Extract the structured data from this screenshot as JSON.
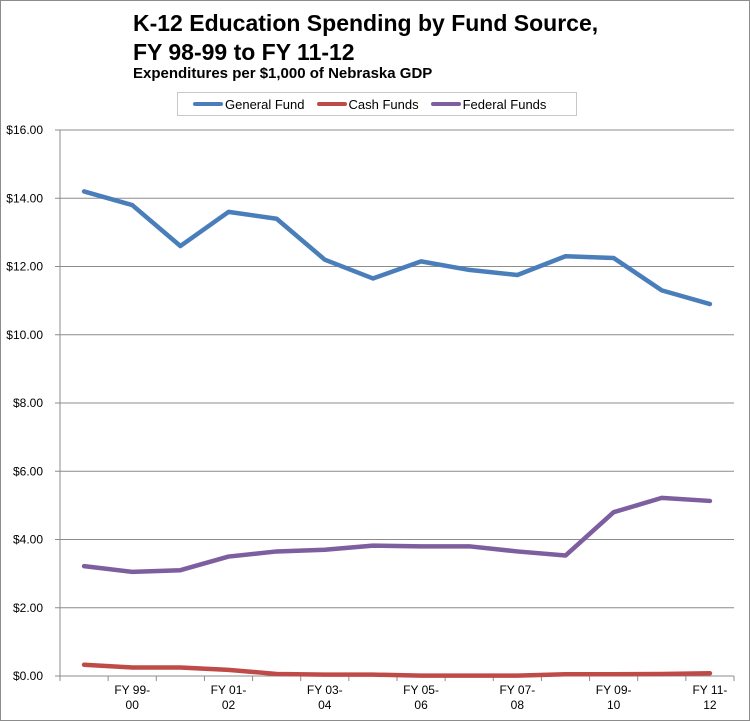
{
  "chart_data": {
    "type": "line",
    "title": "K-12 Education Spending by Fund Source,\nFY 98-99 to FY 11-12",
    "subtitle": "Expenditures per $1,000 of Nebraska GDP",
    "xlabel": "",
    "ylabel": "",
    "ylim": [
      0,
      16
    ],
    "yticks": [
      "$0.00",
      "$2.00",
      "$4.00",
      "$6.00",
      "$8.00",
      "$10.00",
      "$12.00",
      "$14.00",
      "$16.00"
    ],
    "grid": true,
    "legend_position": "top",
    "categories": [
      "",
      "FY 99-00",
      "",
      "FY 01-02",
      "",
      "FY 03-04",
      "",
      "FY 05-06",
      "",
      "FY 07-08",
      "",
      "FY 09-10",
      "",
      "FY 11-12"
    ],
    "x_tick_labels": [
      {
        "line1": "FY 99-",
        "line2": "00"
      },
      {
        "line1": "FY 01-",
        "line2": "02"
      },
      {
        "line1": "FY 03-",
        "line2": "04"
      },
      {
        "line1": "FY 05-",
        "line2": "06"
      },
      {
        "line1": "FY 07-",
        "line2": "08"
      },
      {
        "line1": "FY 09-",
        "line2": "10"
      },
      {
        "line1": "FY 11-",
        "line2": "12"
      }
    ],
    "series": [
      {
        "name": "General Fund",
        "color": "#4a7ebb",
        "values": [
          14.2,
          13.8,
          12.6,
          13.6,
          13.4,
          12.2,
          11.65,
          12.15,
          11.9,
          11.75,
          12.3,
          12.25,
          11.3,
          10.9
        ]
      },
      {
        "name": "Cash Funds",
        "color": "#be4b48",
        "values": [
          0.33,
          0.25,
          0.25,
          0.18,
          0.06,
          0.04,
          0.04,
          0.01,
          0.01,
          0.01,
          0.05,
          0.05,
          0.06,
          0.08
        ]
      },
      {
        "name": "Federal Funds",
        "color": "#7d5fa0",
        "values": [
          3.22,
          3.05,
          3.1,
          3.5,
          3.65,
          3.7,
          3.82,
          3.8,
          3.8,
          3.65,
          3.53,
          4.8,
          5.22,
          5.13
        ]
      }
    ]
  }
}
